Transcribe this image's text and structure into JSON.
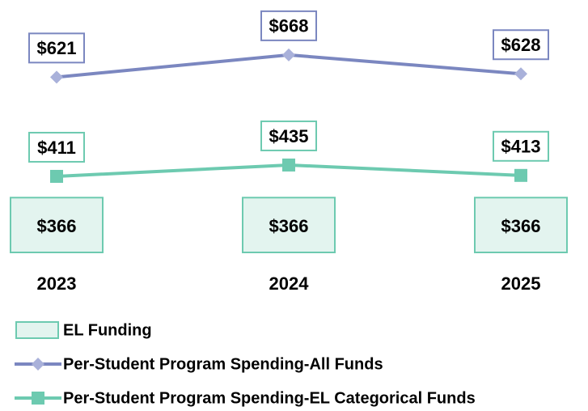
{
  "chart_data": {
    "type": "combo",
    "categories": [
      "2023",
      "2024",
      "2025"
    ],
    "series": [
      {
        "name": "EL Funding",
        "type": "bar",
        "color": "#e3f4ef",
        "edge_color": "#6dcab0",
        "values": [
          366,
          366,
          366
        ],
        "value_labels": [
          "$366",
          "$366",
          "$366"
        ]
      },
      {
        "name": "Per-Student Program Spending-All Funds",
        "type": "line",
        "color": "#7b87c0",
        "marker_color": "#a9b1da",
        "marker": "diamond",
        "values": [
          621,
          668,
          628
        ],
        "value_labels": [
          "$621",
          "$668",
          "$628"
        ]
      },
      {
        "name": "Per-Student Program Spending-EL Categorical Funds",
        "type": "line",
        "color": "#6dcab0",
        "marker_color": "#6dcab0",
        "marker": "square",
        "values": [
          411,
          435,
          413
        ],
        "value_labels": [
          "$411",
          "$435",
          "$413"
        ]
      }
    ],
    "legend": "bottom-left"
  }
}
